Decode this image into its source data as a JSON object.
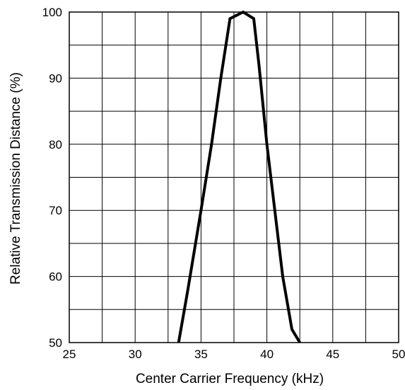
{
  "chart_data": {
    "type": "line",
    "title": "",
    "xlabel": "Center Carrier Frequency  (kHz)",
    "ylabel": "Relative Transmission Distance (%)",
    "xlim": [
      25,
      50
    ],
    "ylim": [
      50,
      100
    ],
    "xticks": [
      25,
      27.5,
      30,
      32.5,
      35,
      37.5,
      40,
      42.5,
      45,
      47.5,
      50
    ],
    "yticks": [
      50,
      55,
      60,
      65,
      70,
      75,
      80,
      85,
      90,
      95,
      100
    ],
    "xtick_labels": [
      {
        "value": 25,
        "label": "25"
      },
      {
        "value": 30,
        "label": "30"
      },
      {
        "value": 35,
        "label": "35"
      },
      {
        "value": 40,
        "label": "40"
      },
      {
        "value": 45,
        "label": "45"
      },
      {
        "value": 50,
        "label": "50"
      }
    ],
    "ytick_labels": [
      {
        "value": 50,
        "label": "50"
      },
      {
        "value": 60,
        "label": "60"
      },
      {
        "value": 70,
        "label": "70"
      },
      {
        "value": 80,
        "label": "80"
      },
      {
        "value": 90,
        "label": "90"
      },
      {
        "value": 100,
        "label": "100"
      }
    ],
    "grid": true,
    "legend": "none",
    "series": [
      {
        "color": "#000000",
        "points": [
          {
            "x": 33.3,
            "y": 50
          },
          {
            "x": 34,
            "y": 58
          },
          {
            "x": 35,
            "y": 70
          },
          {
            "x": 35.8,
            "y": 80
          },
          {
            "x": 36.5,
            "y": 90
          },
          {
            "x": 37.2,
            "y": 99
          },
          {
            "x": 38.2,
            "y": 100
          },
          {
            "x": 39,
            "y": 99
          },
          {
            "x": 39.4,
            "y": 92
          },
          {
            "x": 40,
            "y": 80
          },
          {
            "x": 40.6,
            "y": 70
          },
          {
            "x": 41.2,
            "y": 60
          },
          {
            "x": 41.9,
            "y": 52
          },
          {
            "x": 42.5,
            "y": 50
          }
        ]
      }
    ]
  }
}
